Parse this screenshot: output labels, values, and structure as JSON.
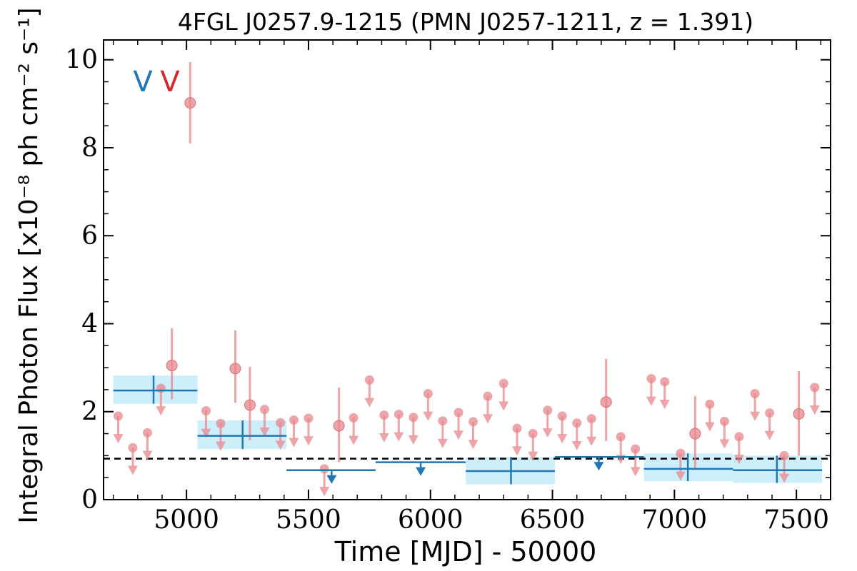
{
  "chart_data": {
    "type": "scatter",
    "title": "4FGL J0257.9-1215 (PMN J0257-1211, z = 1.391)",
    "xlabel": "Time [MJD] - 50000",
    "ylabel": "Integral Photon Flux [x10⁻⁸ ph cm⁻² s⁻¹]",
    "xlim": [
      4660,
      7640
    ],
    "ylim": [
      0,
      10.45
    ],
    "xticks": [
      5000,
      5500,
      6000,
      6500,
      7000,
      7500
    ],
    "xtick_labels": [
      "5000",
      "5500",
      "6000",
      "6500",
      "7000",
      "7500"
    ],
    "yticks": [
      0,
      2,
      4,
      6,
      8,
      10
    ],
    "ytick_labels": [
      "0",
      "2",
      "4",
      "6",
      "8",
      "10"
    ],
    "grid": false,
    "legend": {
      "placement": "top-left",
      "entries": [
        {
          "label": "V",
          "color": "#1f77b4"
        },
        {
          "label": "V",
          "color": "#d62728"
        }
      ]
    },
    "reference_line": {
      "y": 0.93,
      "style": "dashed",
      "color": "#000000"
    },
    "series": [
      {
        "color": "#1f77b4",
        "band_color": "#cdeefb",
        "binned": [
          {
            "x": 4865,
            "xlo": 4700,
            "xhi": 5045,
            "y": 2.48,
            "ylo": 2.18,
            "yhi": 2.82,
            "band_lo": 2.18,
            "band_hi": 2.82
          },
          {
            "x": 5230,
            "xlo": 5045,
            "xhi": 5410,
            "y": 1.45,
            "ylo": 1.15,
            "yhi": 1.8,
            "band_lo": 1.15,
            "band_hi": 1.8
          },
          {
            "x": 6330,
            "xlo": 6145,
            "xhi": 6510,
            "y": 0.65,
            "ylo": 0.35,
            "yhi": 0.97,
            "band_lo": 0.35,
            "band_hi": 0.97
          },
          {
            "x": 7055,
            "xlo": 6875,
            "xhi": 7240,
            "y": 0.7,
            "ylo": 0.42,
            "yhi": 1.05,
            "band_lo": 0.42,
            "band_hi": 1.05
          },
          {
            "x": 7420,
            "xlo": 7240,
            "xhi": 7605,
            "y": 0.67,
            "ylo": 0.38,
            "yhi": 1.0,
            "band_lo": 0.38,
            "band_hi": 1.0
          }
        ],
        "upper_limits": [
          {
            "x": 5595,
            "xlo": 5410,
            "xhi": 5775,
            "y": 0.67
          },
          {
            "x": 5960,
            "xlo": 5775,
            "xhi": 6145,
            "y": 0.85
          },
          {
            "x": 6690,
            "xlo": 6510,
            "xhi": 6875,
            "y": 0.97
          }
        ]
      },
      {
        "color": "#e8878c",
        "points": [
          {
            "x": 4940,
            "y": 3.05,
            "ylo": 2.28,
            "yhi": 3.9
          },
          {
            "x": 5015,
            "y": 9.02,
            "ylo": 8.1,
            "yhi": 9.95
          },
          {
            "x": 5200,
            "y": 2.98,
            "ylo": 2.2,
            "yhi": 3.85
          },
          {
            "x": 5260,
            "y": 2.15,
            "ylo": 1.35,
            "yhi": 3.02
          },
          {
            "x": 5625,
            "y": 1.68,
            "ylo": 0.85,
            "yhi": 2.55
          },
          {
            "x": 6720,
            "y": 2.22,
            "ylo": 1.33,
            "yhi": 3.2
          },
          {
            "x": 7085,
            "y": 1.5,
            "ylo": 0.7,
            "yhi": 2.35
          },
          {
            "x": 7510,
            "y": 1.95,
            "ylo": 1.0,
            "yhi": 2.92
          }
        ],
        "upper_limits": [
          {
            "x": 4720,
            "y": 1.9
          },
          {
            "x": 4780,
            "y": 1.18
          },
          {
            "x": 4840,
            "y": 1.52
          },
          {
            "x": 4895,
            "y": 2.53
          },
          {
            "x": 5080,
            "y": 2.02
          },
          {
            "x": 5140,
            "y": 1.73
          },
          {
            "x": 5320,
            "y": 2.05
          },
          {
            "x": 5385,
            "y": 1.75
          },
          {
            "x": 5440,
            "y": 1.81
          },
          {
            "x": 5500,
            "y": 1.85
          },
          {
            "x": 5565,
            "y": 0.7
          },
          {
            "x": 5685,
            "y": 1.86
          },
          {
            "x": 5750,
            "y": 2.72
          },
          {
            "x": 5810,
            "y": 1.92
          },
          {
            "x": 5870,
            "y": 1.94
          },
          {
            "x": 5930,
            "y": 1.87
          },
          {
            "x": 5990,
            "y": 2.41
          },
          {
            "x": 6050,
            "y": 1.79
          },
          {
            "x": 6115,
            "y": 1.98
          },
          {
            "x": 6175,
            "y": 1.77
          },
          {
            "x": 6235,
            "y": 2.35
          },
          {
            "x": 6300,
            "y": 2.64
          },
          {
            "x": 6355,
            "y": 1.62
          },
          {
            "x": 6420,
            "y": 1.5
          },
          {
            "x": 6480,
            "y": 2.03
          },
          {
            "x": 6540,
            "y": 1.9
          },
          {
            "x": 6600,
            "y": 1.74
          },
          {
            "x": 6660,
            "y": 1.84
          },
          {
            "x": 6780,
            "y": 1.43
          },
          {
            "x": 6840,
            "y": 1.15
          },
          {
            "x": 6905,
            "y": 2.75
          },
          {
            "x": 6960,
            "y": 2.68
          },
          {
            "x": 7025,
            "y": 1.05
          },
          {
            "x": 7145,
            "y": 2.17
          },
          {
            "x": 7205,
            "y": 1.78
          },
          {
            "x": 7265,
            "y": 1.43
          },
          {
            "x": 7330,
            "y": 2.41
          },
          {
            "x": 7390,
            "y": 1.97
          },
          {
            "x": 7450,
            "y": 1.0
          },
          {
            "x": 7575,
            "y": 2.55
          }
        ]
      }
    ]
  }
}
